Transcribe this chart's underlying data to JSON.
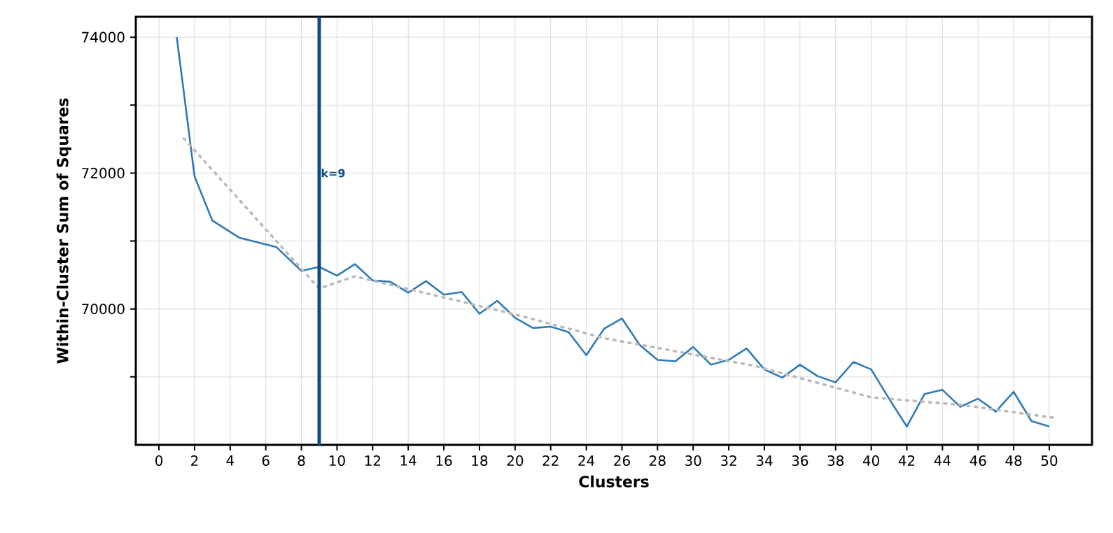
{
  "chart_data": {
    "type": "line",
    "xlabel": "Clusters",
    "ylabel": "Within-Cluster Sum of Squares",
    "xlim": [
      -1.3,
      52.4
    ],
    "ylim": [
      68000,
      74300
    ],
    "xticks": [
      0,
      2,
      4,
      6,
      8,
      10,
      12,
      14,
      16,
      18,
      20,
      22,
      24,
      26,
      28,
      30,
      32,
      34,
      36,
      38,
      40,
      42,
      44,
      46,
      48,
      50
    ],
    "yticks": [
      {
        "value": 69000,
        "label": null
      },
      70000,
      {
        "value": 71000,
        "label": null
      },
      72000,
      {
        "value": 73000,
        "label": null
      },
      74000
    ],
    "grid": true,
    "series": [
      {
        "color": "#2f7bb6",
        "line_style": "solid",
        "x": [
          1,
          2,
          3,
          4.5,
          6.6,
          8,
          9,
          10,
          11,
          12,
          13,
          14,
          15,
          16,
          17,
          18,
          19,
          20,
          21,
          22,
          23,
          24,
          25,
          26,
          27,
          28,
          29,
          30,
          31,
          32,
          33,
          34,
          35,
          36,
          37,
          38,
          39,
          40,
          41,
          42,
          43,
          44,
          45,
          46,
          47,
          48,
          49,
          50
        ],
        "values": [
          74000,
          71950,
          71300,
          71050,
          70910,
          70560,
          70620,
          70490,
          70660,
          70420,
          70400,
          70240,
          70410,
          70210,
          70250,
          69930,
          70120,
          69870,
          69720,
          69740,
          69660,
          69320,
          69710,
          69860,
          69470,
          69250,
          69230,
          69440,
          69180,
          69250,
          69420,
          69110,
          68990,
          69180,
          69010,
          68920,
          69220,
          69110,
          68680,
          68270,
          68750,
          68810,
          68560,
          68680,
          68490,
          68780,
          68350,
          68270
        ]
      },
      {
        "type": "line",
        "color": "#bbbbbb",
        "line_style": "dotted",
        "x": [
          1.4,
          9,
          11,
          20,
          25,
          30,
          33.5,
          40,
          45,
          50.5
        ],
        "values": [
          72510,
          70300,
          70480,
          69920,
          69570,
          69330,
          69160,
          68700,
          68590,
          68390
        ]
      }
    ],
    "ref_lines": [
      {
        "axis": "x",
        "value": 9,
        "label": "k=9",
        "color": "#0f4c81"
      }
    ]
  }
}
